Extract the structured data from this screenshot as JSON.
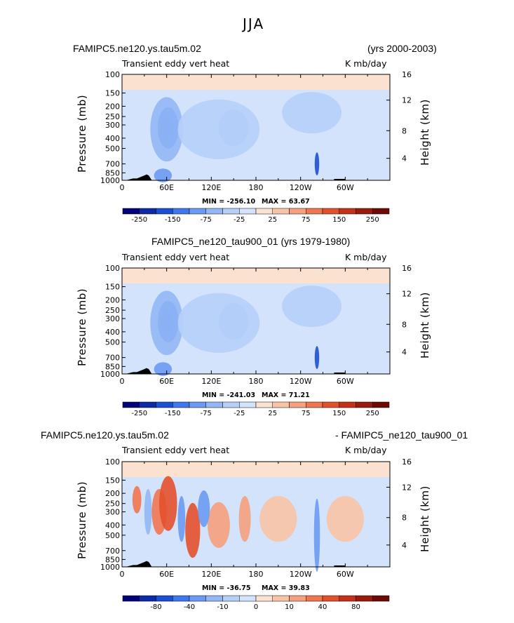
{
  "title": "JJA",
  "chart_data": [
    {
      "type": "heatmap",
      "panel": "top",
      "case_left": "FAMIPC5.ne120.ys.tau5m.02",
      "case_right": "(yrs 2000-2003)",
      "left_string": "Transient eddy vert heat",
      "right_string": "K mb/day",
      "ylabel": "Pressure (mb)",
      "ylabel_right": "Height (km)",
      "x_ticks": [
        "0",
        "60E",
        "120E",
        "180",
        "120W",
        "60W"
      ],
      "x_tick_values": [
        0,
        60,
        120,
        180,
        240,
        300
      ],
      "xlim": [
        0,
        360
      ],
      "y_ticks": [
        "100",
        "150",
        "200",
        "250",
        "300",
        "400",
        "500",
        "700",
        "850",
        "1000"
      ],
      "y_tick_values": [
        100,
        150,
        200,
        250,
        300,
        400,
        500,
        700,
        850,
        1000
      ],
      "height_ticks": [
        "16",
        "12",
        "8",
        "4"
      ],
      "min_label": "MIN = -256.10",
      "max_label": "MAX =  63.67",
      "colorbar_labels": [
        "-250",
        "-150",
        "-75",
        "-25",
        "25",
        "75",
        "150",
        "250"
      ],
      "colorbar_levels": [
        -300,
        -250,
        -200,
        -150,
        -100,
        -75,
        -50,
        -25,
        0,
        25,
        50,
        75,
        100,
        150,
        200,
        250,
        300
      ]
    },
    {
      "type": "heatmap",
      "panel": "middle",
      "case_center": "FAMIPC5_ne120_tau900_01 (yrs 1979-1980)",
      "left_string": "Transient eddy vert heat",
      "right_string": "K mb/day",
      "ylabel": "Pressure (mb)",
      "ylabel_right": "Height (km)",
      "x_ticks": [
        "0",
        "60E",
        "120E",
        "180",
        "120W",
        "60W"
      ],
      "x_tick_values": [
        0,
        60,
        120,
        180,
        240,
        300
      ],
      "xlim": [
        0,
        360
      ],
      "y_ticks": [
        "100",
        "150",
        "200",
        "250",
        "300",
        "400",
        "500",
        "700",
        "850",
        "1000"
      ],
      "y_tick_values": [
        100,
        150,
        200,
        250,
        300,
        400,
        500,
        700,
        850,
        1000
      ],
      "height_ticks": [
        "16",
        "12",
        "8",
        "4"
      ],
      "min_label": "MIN = -241.03",
      "max_label": "MAX =  71.21",
      "colorbar_labels": [
        "-250",
        "-150",
        "-75",
        "-25",
        "25",
        "75",
        "150",
        "250"
      ],
      "colorbar_levels": [
        -300,
        -250,
        -200,
        -150,
        -100,
        -75,
        -50,
        -25,
        0,
        25,
        50,
        75,
        100,
        150,
        200,
        250,
        300
      ]
    },
    {
      "type": "heatmap",
      "panel": "bottom",
      "case_left": "FAMIPC5.ne120.ys.tau5m.02",
      "case_right": "- FAMIPC5_ne120_tau900_01",
      "left_string": "Transient eddy vert heat",
      "right_string": "K mb/day",
      "ylabel": "Pressure (mb)",
      "ylabel_right": "Height (km)",
      "x_ticks": [
        "0",
        "60E",
        "120E",
        "180",
        "120W",
        "60W"
      ],
      "x_tick_values": [
        0,
        60,
        120,
        180,
        240,
        300
      ],
      "xlim": [
        0,
        360
      ],
      "y_ticks": [
        "100",
        "150",
        "200",
        "250",
        "300",
        "400",
        "500",
        "700",
        "850",
        "1000"
      ],
      "y_tick_values": [
        100,
        150,
        200,
        250,
        300,
        400,
        500,
        700,
        850,
        1000
      ],
      "height_ticks": [
        "16",
        "12",
        "8",
        "4"
      ],
      "min_label": "MIN = -36.75",
      "max_label": "MAX =  39.83",
      "colorbar_labels": [
        "-80",
        "-40",
        "-10",
        "0",
        "10",
        "40",
        "80"
      ],
      "colorbar_levels": [
        -120,
        -100,
        -80,
        -60,
        -40,
        -20,
        -10,
        -5,
        0,
        5,
        10,
        20,
        40,
        60,
        80,
        100,
        120
      ]
    }
  ],
  "colormap": [
    "#00007a",
    "#0a2aa8",
    "#1d4fd6",
    "#3f78ee",
    "#6a9af2",
    "#93b7f5",
    "#b6cff8",
    "#d3e3fb",
    "#fbe1cf",
    "#f9c3a6",
    "#f6a07d",
    "#f07650",
    "#e3502c",
    "#c53019",
    "#9a1a0c",
    "#6e0a05"
  ]
}
